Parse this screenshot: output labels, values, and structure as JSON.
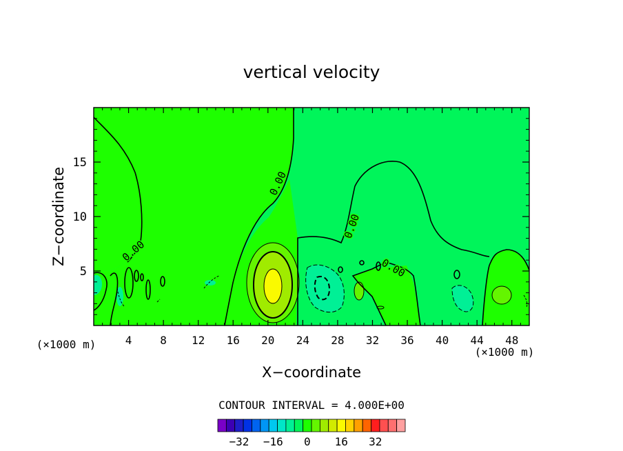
{
  "chart_data": {
    "type": "contour",
    "title": "vertical velocity",
    "xlabel": "X−coordinate",
    "ylabel": "Z−coordinate",
    "x_unit_left": "(×1000 m)",
    "x_unit_right": "(×1000 m)",
    "xlim": [
      0,
      50
    ],
    "ylim": [
      0,
      20
    ],
    "x_ticks": [
      4,
      8,
      12,
      16,
      20,
      24,
      28,
      32,
      36,
      40,
      44,
      48
    ],
    "x_tick_labels": [
      "4",
      "8",
      "12",
      "16",
      "20",
      "24",
      "28",
      "32",
      "36",
      "40",
      "44",
      "48"
    ],
    "y_ticks": [
      5,
      10,
      15
    ],
    "y_tick_labels": [
      "5",
      "10",
      "15"
    ],
    "contour_interval_text": "CONTOUR INTERVAL = 4.000E+00",
    "contour_labels": [
      {
        "text": "0.00",
        "x": 4.8,
        "z": 6.6,
        "angle": -40
      },
      {
        "text": "0.00",
        "x": 21.5,
        "z": 12.9,
        "angle": -65
      },
      {
        "text": "0.00",
        "x": 30.0,
        "z": 9.0,
        "angle": -70
      },
      {
        "text": "0.00",
        "x": 34.2,
        "z": 5.0,
        "angle": 30
      }
    ],
    "background_level": 0,
    "regions": [
      {
        "level": 4,
        "kind": "updraft",
        "center_x": 20.6,
        "center_z": 3.8
      },
      {
        "level": 8,
        "kind": "updraft",
        "center_x": 20.6,
        "center_z": 3.8
      },
      {
        "level": 12,
        "kind": "updraft_core",
        "center_x": 20.6,
        "center_z": 3.8
      },
      {
        "level": -4,
        "kind": "downdraft",
        "center_x": 27.0,
        "center_z": 3.5
      },
      {
        "level": 4,
        "kind": "updraft",
        "center_x": 30.5,
        "center_z": 3.0
      },
      {
        "level": 4,
        "kind": "updraft",
        "center_x": 46.5,
        "center_z": 2.8
      },
      {
        "level": -4,
        "kind": "downdraft",
        "center_x": 42.0,
        "center_z": 2.8
      },
      {
        "level": -4,
        "kind": "downdraft",
        "center_x": 0.5,
        "center_z": 3.5
      }
    ],
    "colorbar": {
      "tick_labels": [
        "−32",
        "−16",
        "0",
        "16",
        "32"
      ],
      "tick_values": [
        -32,
        -16,
        0,
        16,
        32
      ],
      "levels": [
        -36,
        -32,
        -28,
        -24,
        -20,
        -16,
        -12,
        -8,
        -4,
        0,
        4,
        8,
        12,
        16,
        20,
        24,
        28,
        32,
        36
      ],
      "colors": [
        "#7a00c8",
        "#3c00b4",
        "#1e1ec8",
        "#0032e6",
        "#0064f0",
        "#0096f5",
        "#00c8f0",
        "#00e6c8",
        "#00f096",
        "#00f55a",
        "#1eff00",
        "#64f500",
        "#a0eb00",
        "#d2eb00",
        "#fafa00",
        "#ffd200",
        "#ffa000",
        "#ff6400",
        "#ff1e1e",
        "#ff5050",
        "#ff7070",
        "#ffa0a0"
      ]
    }
  }
}
